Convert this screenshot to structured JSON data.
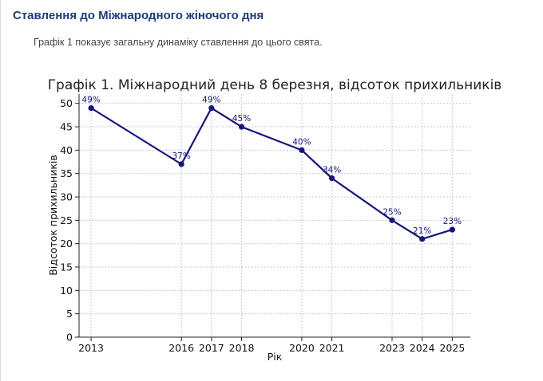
{
  "page": {
    "heading": "Ставлення до Міжнародного жіночого дня",
    "intro": "Графік 1 показує загальну динаміку ставлення до цього свята."
  },
  "chart_data": {
    "type": "line",
    "title": "Графік 1. Міжнародний день 8 березня, відсоток прихильників",
    "xlabel": "Рік",
    "ylabel": "Відсоток прихильників",
    "x": [
      2013,
      2016,
      2017,
      2018,
      2020,
      2021,
      2023,
      2024,
      2025
    ],
    "xticks": [
      "2013",
      "2016",
      "2017",
      "2018",
      "2020",
      "2021",
      "2023",
      "2024",
      "2025"
    ],
    "series": [
      {
        "values": [
          49,
          37,
          49,
          45,
          40,
          34,
          25,
          21,
          23
        ],
        "labels": [
          "49%",
          "37%",
          "49%",
          "45%",
          "40%",
          "34%",
          "25%",
          "21%",
          "23%"
        ],
        "color": "#141478"
      }
    ],
    "xlim": [
      2012.6,
      2025.6
    ],
    "ylim": [
      0,
      52
    ],
    "yticks": [
      0,
      5,
      10,
      15,
      20,
      25,
      30,
      35,
      40,
      45,
      50
    ],
    "grid": true
  }
}
